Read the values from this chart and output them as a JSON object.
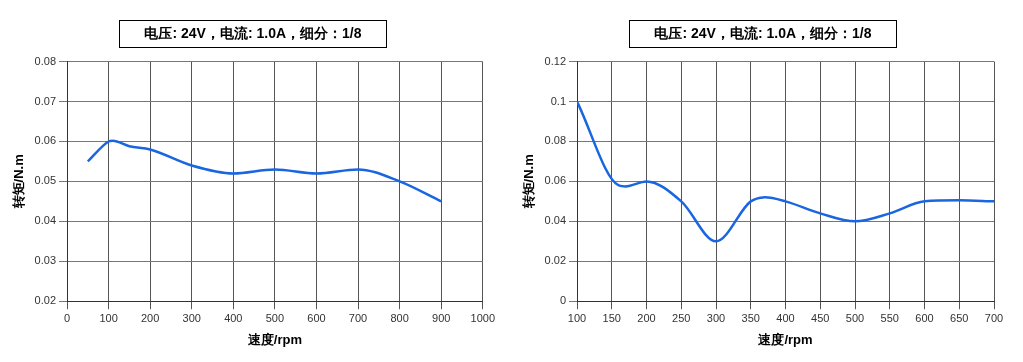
{
  "chart_data": [
    {
      "type": "line",
      "subtitle": "电压: 24V，电流: 1.0A，细分：1/8",
      "xlabel": "速度/rpm",
      "ylabel": "转矩/N.m",
      "xlim": [
        0,
        1000
      ],
      "xticks": [
        0,
        100,
        200,
        300,
        400,
        500,
        600,
        700,
        800,
        900,
        1000
      ],
      "ylim": [
        0.02,
        0.08
      ],
      "yticks": [
        0.02,
        0.03,
        0.04,
        0.05,
        0.06,
        0.07,
        0.08
      ],
      "grid": true,
      "legend": false,
      "marker": "none",
      "series": [
        {
          "color": "#1a66e0",
          "x": [
            50,
            100,
            110,
            150,
            200,
            300,
            400,
            500,
            600,
            700,
            800,
            900
          ],
          "values": [
            0.055,
            0.06,
            0.0602,
            0.0588,
            0.058,
            0.054,
            0.052,
            0.053,
            0.052,
            0.053,
            0.05,
            0.045
          ]
        }
      ]
    },
    {
      "type": "line",
      "subtitle": "电压: 24V，电流: 1.0A，细分：1/8",
      "xlabel": "速度/rpm",
      "ylabel": "转矩/N.m",
      "xlim": [
        100,
        700
      ],
      "xticks": [
        100,
        150,
        200,
        250,
        300,
        350,
        400,
        450,
        500,
        550,
        600,
        650,
        700
      ],
      "ylim": [
        0,
        0.12
      ],
      "yticks": [
        0,
        0.02,
        0.04,
        0.06,
        0.08,
        0.1,
        0.12
      ],
      "grid": true,
      "legend": false,
      "marker": "none",
      "series": [
        {
          "color": "#1a66e0",
          "x": [
            100,
            160,
            170,
            200,
            250,
            300,
            350,
            370,
            400,
            450,
            500,
            550,
            600,
            650,
            700
          ],
          "values": [
            0.1,
            0.058,
            0.0575,
            0.06,
            0.05,
            0.03,
            0.05,
            0.052,
            0.05,
            0.044,
            0.04,
            0.044,
            0.05,
            0.0505,
            0.05
          ]
        }
      ]
    }
  ]
}
